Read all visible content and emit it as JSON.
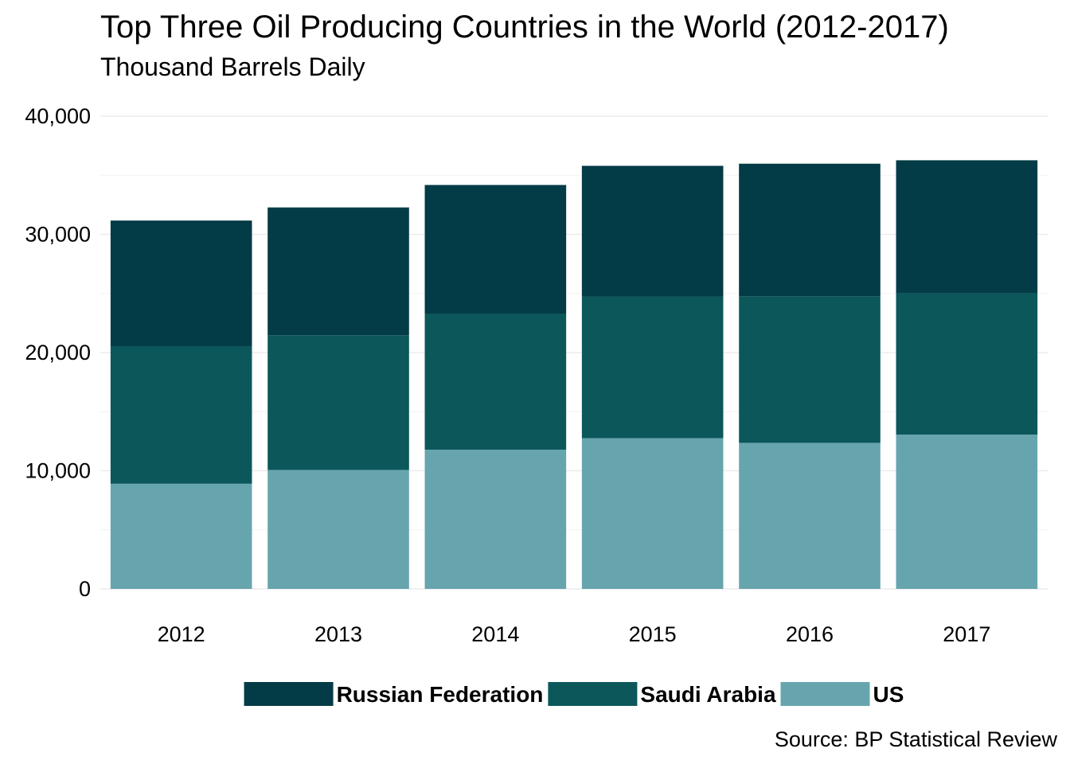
{
  "title": "Top Three Oil Producing Countries in the World (2012-2017)",
  "subtitle": "Thousand Barrels Daily",
  "caption": "Source: BP Statistical Review",
  "chart_data": {
    "type": "bar",
    "stacked": true,
    "title": "Top Three Oil Producing Countries in the World (2012-2017)",
    "subtitle": "Thousand Barrels Daily",
    "xlabel": "",
    "ylabel": "",
    "categories": [
      "2012",
      "2013",
      "2014",
      "2015",
      "2016",
      "2017"
    ],
    "series": [
      {
        "name": "US",
        "color": "#67a5ae",
        "values": [
          8900,
          10070,
          11780,
          12760,
          12360,
          13060
        ]
      },
      {
        "name": "Saudi Arabia",
        "color": "#0b575a",
        "values": [
          11640,
          11400,
          11520,
          11960,
          12400,
          11950
        ]
      },
      {
        "name": "Russian Federation",
        "color": "#033b46",
        "values": [
          10630,
          10810,
          10880,
          11080,
          11220,
          11260
        ]
      }
    ],
    "legend_order": [
      "Russian Federation",
      "Saudi Arabia",
      "US"
    ],
    "ylim": [
      0,
      40000
    ],
    "y_ticks": [
      0,
      10000,
      20000,
      30000,
      40000
    ],
    "y_tick_labels": [
      "0",
      "10,000",
      "20,000",
      "30,000",
      "40,000"
    ],
    "grid": true,
    "legend_position": "bottom"
  }
}
